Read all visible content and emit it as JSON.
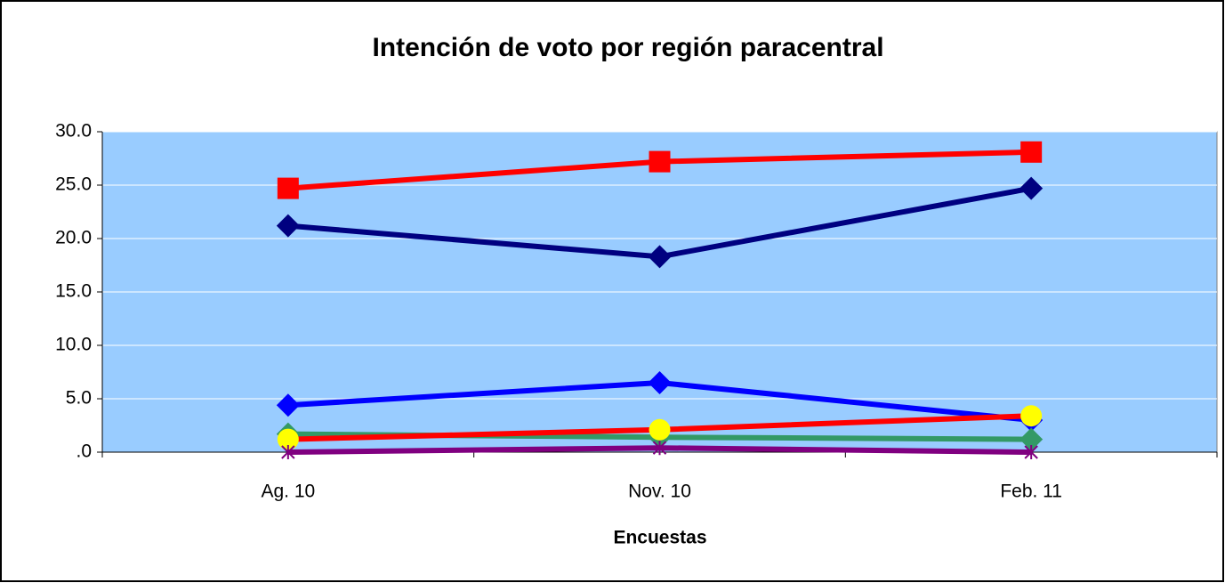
{
  "chart_data": {
    "type": "line",
    "title": "Intención de voto por región paracentral",
    "x_label": "Encuestas",
    "categories": [
      "Ag. 10",
      "Nov. 10",
      "Feb. 11"
    ],
    "series": [
      {
        "color": "#ff0000",
        "marker": "square",
        "marker_color": "#ff0000",
        "values": [
          24.7,
          27.2,
          28.1
        ]
      },
      {
        "color": "#000080",
        "marker": "diamond",
        "marker_color": "#000080",
        "values": [
          21.2,
          18.3,
          24.7
        ]
      },
      {
        "color": "#0000ff",
        "marker": "diamond",
        "marker_color": "#0000ff",
        "values": [
          4.4,
          6.5,
          3.0
        ]
      },
      {
        "color": "#339966",
        "marker": "diamond",
        "marker_color": "#339966",
        "values": [
          1.7,
          1.4,
          1.2
        ]
      },
      {
        "color": "#ff0000",
        "marker": "circle",
        "marker_color": "#ffff00",
        "values": [
          1.2,
          2.1,
          3.4
        ]
      },
      {
        "color": "#800080",
        "marker": "cross",
        "marker_color": "#800080",
        "values": [
          0.0,
          0.4,
          0.0
        ]
      }
    ],
    "ylim": [
      0,
      30
    ],
    "yticks": [
      {
        "value": 0,
        "label": ".0"
      },
      {
        "value": 5,
        "label": "5.0"
      },
      {
        "value": 10,
        "label": "10.0"
      },
      {
        "value": 15,
        "label": "15.0"
      },
      {
        "value": 20,
        "label": "20.0"
      },
      {
        "value": 25,
        "label": "25.0"
      },
      {
        "value": 30,
        "label": "30.0"
      }
    ],
    "grid": true,
    "plot_background": "#99ccff"
  }
}
